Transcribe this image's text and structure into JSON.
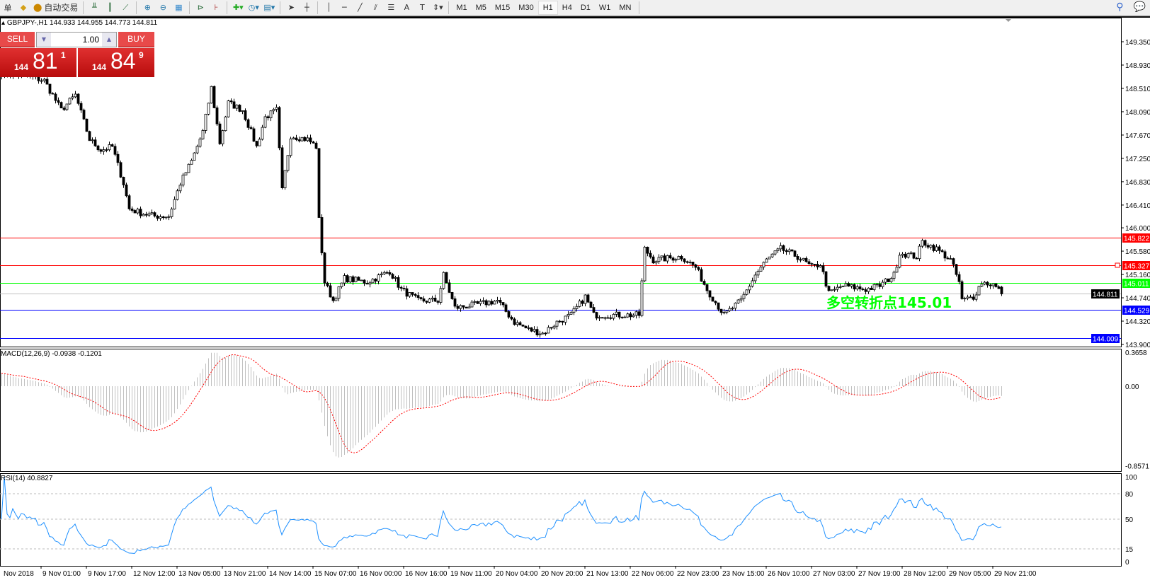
{
  "toolbar": {
    "left_partial_label": "单",
    "auto_trading_label": "自动交易",
    "timeframes": [
      "M1",
      "M5",
      "M15",
      "M30",
      "H1",
      "H4",
      "D1",
      "W1",
      "MN"
    ],
    "active_timeframe": "H1",
    "icons": [
      "orders-icon",
      "auto-trading-icon",
      "bar-chart-icon",
      "candlestick-icon",
      "line-chart-icon",
      "zoom-in-icon",
      "zoom-out-icon",
      "tile-windows-icon",
      "auto-scroll-icon",
      "chart-shift-icon",
      "indicators-icon",
      "periods-clock-icon",
      "templates-icon",
      "cursor-icon",
      "crosshair-icon",
      "vertical-line-icon",
      "horizontal-line-icon",
      "trendline-icon",
      "equidistant-channel-icon",
      "fibonacci-icon",
      "text-icon",
      "text-label-icon",
      "arrows-icon",
      "search-icon",
      "chat-icon"
    ]
  },
  "symbol": {
    "text": "GBPJPY-,H1  144.933 144.955 144.773 144.811"
  },
  "trade_panel": {
    "sell_label": "SELL",
    "buy_label": "BUY",
    "lot": "1.00",
    "sell_price": {
      "prefix": "144",
      "big": "81",
      "sup": "1"
    },
    "buy_price": {
      "prefix": "144",
      "big": "84",
      "sup": "9"
    },
    "color": "#c8161d"
  },
  "annotation": {
    "text": "多空转折点145.01",
    "color": "#00ff00"
  },
  "chart_data": [
    {
      "type": "candlestick",
      "symbol": "GBPJPY-",
      "timeframe": "H1",
      "last_bar": {
        "open": 144.933,
        "high": 144.955,
        "low": 144.773,
        "close": 144.811
      },
      "ylim": [
        143.9,
        149.35
      ],
      "y_ticks": [
        "149.350",
        "148.930",
        "148.510",
        "148.090",
        "147.670",
        "147.250",
        "146.830",
        "146.410",
        "146.000",
        "145.580",
        "145.160",
        "144.740",
        "144.320",
        "143.900"
      ],
      "x_ticks": [
        "Nov 2018",
        "9 Nov 01:00",
        "9 Nov 17:00",
        "12 Nov 12:00",
        "13 Nov 05:00",
        "13 Nov 21:00",
        "14 Nov 14:00",
        "15 Nov 07:00",
        "16 Nov 00:00",
        "16 Nov 16:00",
        "19 Nov 11:00",
        "20 Nov 04:00",
        "20 Nov 20:00",
        "21 Nov 13:00",
        "22 Nov 06:00",
        "22 Nov 23:00",
        "23 Nov 15:00",
        "26 Nov 10:00",
        "27 Nov 03:00",
        "27 Nov 19:00",
        "28 Nov 12:00",
        "29 Nov 05:00",
        "29 Nov 21:00"
      ],
      "bars_per_x_tick": 16,
      "close_path": [
        [
          0,
          148.78
        ],
        [
          10,
          148.72
        ],
        [
          15,
          148.65
        ],
        [
          21,
          148.12
        ],
        [
          26,
          148.39
        ],
        [
          31,
          147.59
        ],
        [
          35,
          147.4
        ],
        [
          39,
          147.46
        ],
        [
          43,
          146.8
        ],
        [
          45,
          146.34
        ],
        [
          49,
          146.27
        ],
        [
          54,
          146.21
        ],
        [
          59,
          146.21
        ],
        [
          63,
          146.8
        ],
        [
          67,
          147.2
        ],
        [
          71,
          147.73
        ],
        [
          74,
          148.52
        ],
        [
          77,
          147.53
        ],
        [
          80,
          148.25
        ],
        [
          85,
          148.12
        ],
        [
          90,
          147.46
        ],
        [
          93,
          147.99
        ],
        [
          97,
          148.12
        ],
        [
          99,
          146.67
        ],
        [
          102,
          147.66
        ],
        [
          108,
          147.59
        ],
        [
          111,
          147.46
        ],
        [
          112,
          146.14
        ],
        [
          114,
          145.02
        ],
        [
          117,
          144.69
        ],
        [
          121,
          145.09
        ],
        [
          129,
          145.02
        ],
        [
          137,
          145.22
        ],
        [
          141,
          144.89
        ],
        [
          147,
          144.69
        ],
        [
          154,
          144.69
        ],
        [
          156,
          145.15
        ],
        [
          160,
          144.56
        ],
        [
          168,
          144.62
        ],
        [
          175,
          144.69
        ],
        [
          181,
          144.3
        ],
        [
          186,
          144.17
        ],
        [
          191,
          144.1
        ],
        [
          196,
          144.3
        ],
        [
          201,
          144.43
        ],
        [
          206,
          144.76
        ],
        [
          209,
          144.43
        ],
        [
          217,
          144.43
        ],
        [
          225,
          144.43
        ],
        [
          227,
          145.62
        ],
        [
          230,
          145.42
        ],
        [
          240,
          145.48
        ],
        [
          245,
          145.29
        ],
        [
          249,
          144.89
        ],
        [
          255,
          144.43
        ],
        [
          261,
          144.69
        ],
        [
          266,
          145.15
        ],
        [
          270,
          145.42
        ],
        [
          275,
          145.62
        ],
        [
          281,
          145.48
        ],
        [
          286,
          145.29
        ],
        [
          289,
          145.35
        ],
        [
          292,
          144.82
        ],
        [
          297,
          144.96
        ],
        [
          305,
          144.89
        ],
        [
          310,
          144.96
        ],
        [
          315,
          145.15
        ],
        [
          317,
          145.55
        ],
        [
          323,
          145.48
        ],
        [
          325,
          145.75
        ],
        [
          330,
          145.62
        ],
        [
          335,
          145.42
        ],
        [
          338,
          145.02
        ],
        [
          339,
          144.69
        ],
        [
          343,
          144.76
        ],
        [
          346,
          145.02
        ],
        [
          350,
          144.98
        ],
        [
          353,
          144.811
        ]
      ],
      "levels": [
        {
          "price": "145.822",
          "color": "#ff0000"
        },
        {
          "price": "145.327",
          "color": "#ff0000"
        },
        {
          "price": "145.011",
          "color": "#00ff00"
        },
        {
          "price": "144.811",
          "color": "#000000",
          "line": "#c0c0c0"
        },
        {
          "price": "144.529",
          "color": "#0000ff"
        },
        {
          "price": "144.009",
          "color": "#0000ff"
        }
      ]
    },
    {
      "type": "bar",
      "name": "MACD(12,26,9)",
      "label": "MACD(12,26,9) -0.0938 -0.1201",
      "values_printed": [
        -0.0938,
        -0.1201
      ],
      "ylim": [
        -0.8571,
        0.3658
      ],
      "y_ticks": [
        "0.3658",
        "0.00",
        "-0.8571"
      ],
      "histogram_color": "#c0c0c0",
      "signal_color": "#ff0000"
    },
    {
      "type": "line",
      "name": "RSI(14)",
      "label": "RSI(14) 40.8827",
      "value": 40.8827,
      "ylim": [
        0,
        100
      ],
      "y_ticks": [
        "100",
        "80",
        "50",
        "15",
        "0"
      ],
      "levels": [
        80,
        50,
        15
      ],
      "color": "#1e90ff"
    }
  ]
}
